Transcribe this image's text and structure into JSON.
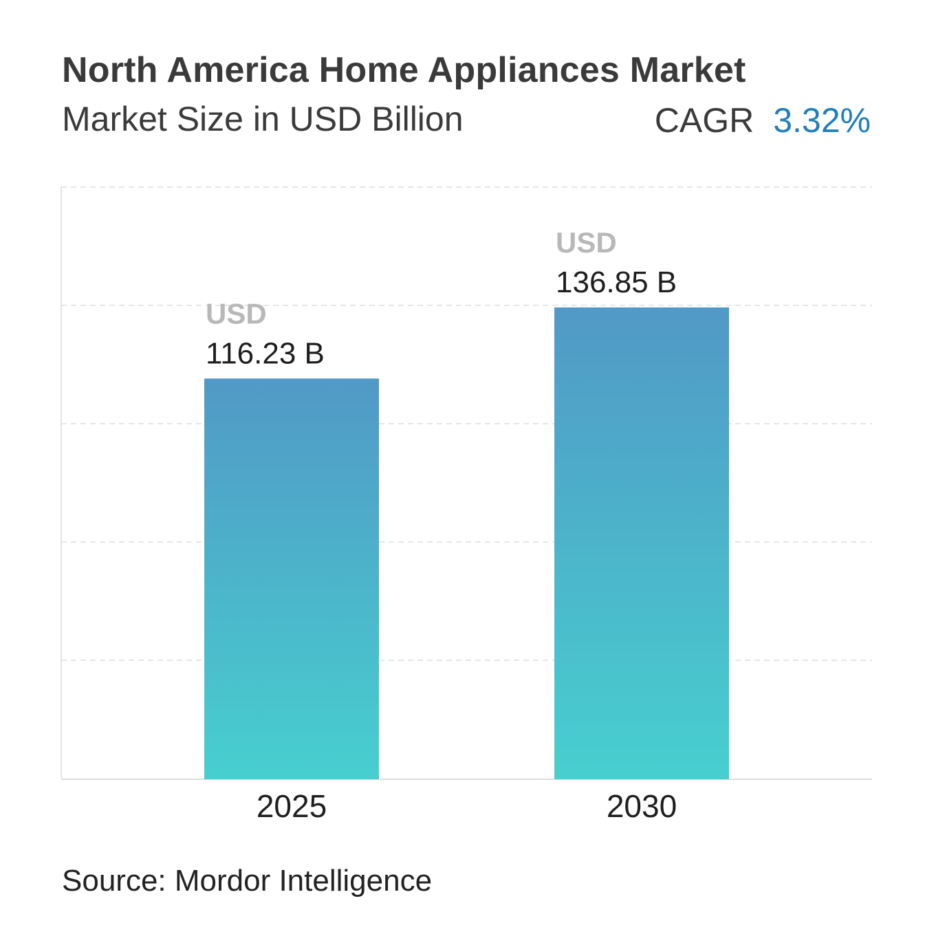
{
  "header": {
    "title": "North America Home Appliances Market",
    "subtitle": "Market Size in USD Billion",
    "cagr_label": "CAGR",
    "cagr_value": "3.32%"
  },
  "footer": {
    "source": "Source: Mordor Intelligence"
  },
  "colors": {
    "bar_top": "#5199c6",
    "bar_bottom": "#47cfcf",
    "accent": "#1f7fba",
    "currency_label": "#b8b8b8",
    "gridline": "#e6e6e6"
  },
  "chart_data": {
    "type": "bar",
    "categories": [
      "2025",
      "2030"
    ],
    "values": [
      116.23,
      136.85
    ],
    "value_prefix": "USD",
    "value_labels": [
      "116.23 B",
      "136.85 B"
    ],
    "grid": true
  }
}
